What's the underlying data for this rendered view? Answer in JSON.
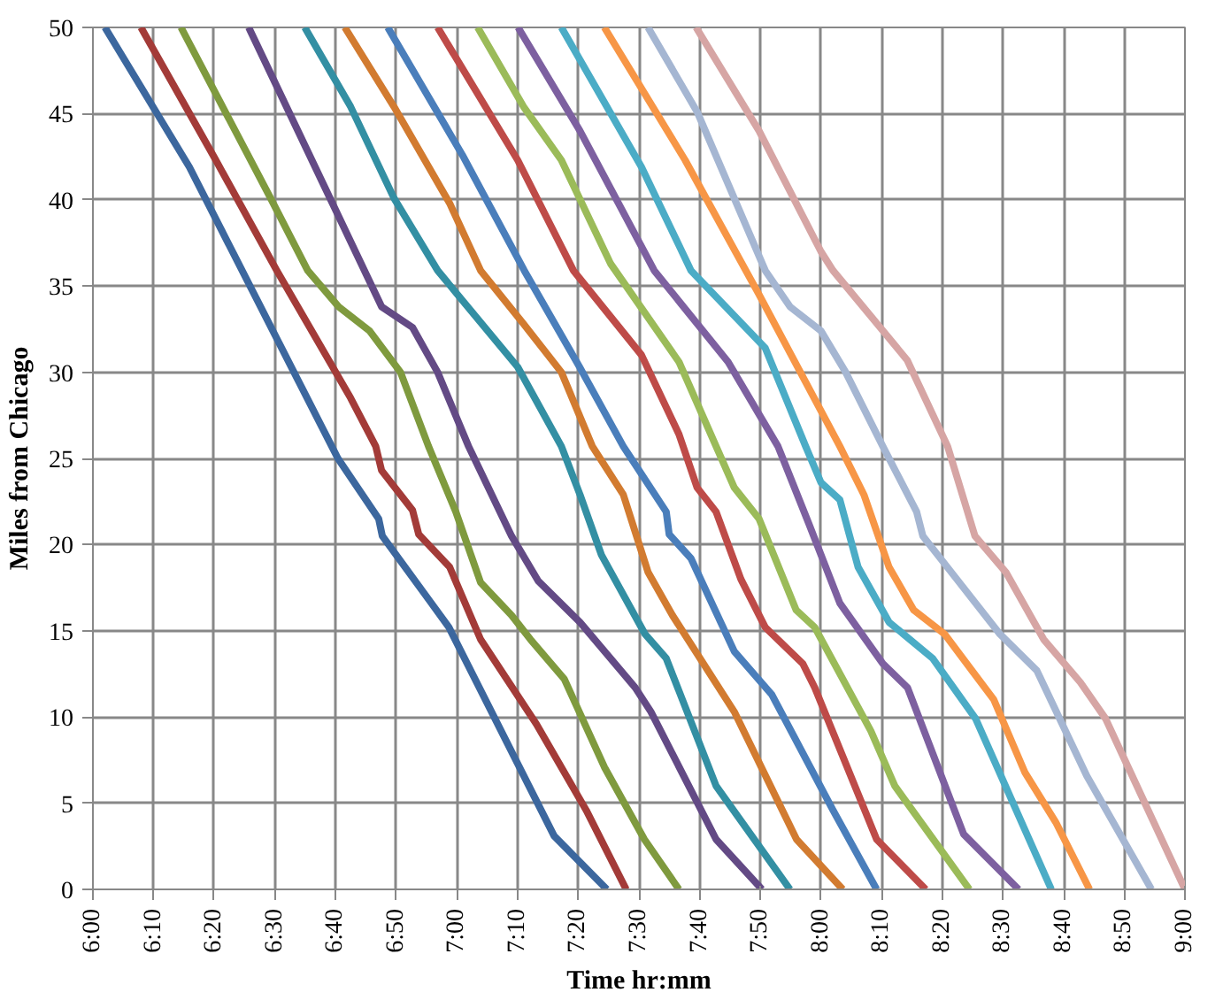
{
  "chart_data": {
    "type": "line",
    "xlabel": "Time hr:mm",
    "ylabel": "Miles from Chicago",
    "xlim": [
      6,
      9
    ],
    "ylim": [
      0,
      50
    ],
    "xticks": [
      {
        "value": 6,
        "label": "6:00"
      },
      {
        "value": 6.167,
        "label": "6:10"
      },
      {
        "value": 6.333,
        "label": "6:20"
      },
      {
        "value": 6.5,
        "label": "6:30"
      },
      {
        "value": 6.667,
        "label": "6:40"
      },
      {
        "value": 6.833,
        "label": "6:50"
      },
      {
        "value": 7,
        "label": "7:00"
      },
      {
        "value": 7.167,
        "label": "7:10"
      },
      {
        "value": 7.333,
        "label": "7:20"
      },
      {
        "value": 7.5,
        "label": "7:30"
      },
      {
        "value": 7.667,
        "label": "7:40"
      },
      {
        "value": 7.833,
        "label": "7:50"
      },
      {
        "value": 8,
        "label": "8:00"
      },
      {
        "value": 8.167,
        "label": "8:10"
      },
      {
        "value": 8.333,
        "label": "8:20"
      },
      {
        "value": 8.5,
        "label": "8:30"
      },
      {
        "value": 8.667,
        "label": "8:40"
      },
      {
        "value": 8.833,
        "label": "8:50"
      },
      {
        "value": 9,
        "label": "9:00"
      }
    ],
    "yticks": [
      0,
      5,
      10,
      15,
      20,
      25,
      30,
      35,
      40,
      45,
      50
    ],
    "grid": true,
    "marker": "none",
    "line_style": "solid",
    "series": [
      {
        "color": "#3c679e",
        "x": [
          6.033,
          6.265,
          6.673,
          6.785,
          6.795,
          6.923,
          6.978,
          7.267,
          7.412
        ],
        "values": [
          50,
          41.9,
          25,
          21.5,
          20.5,
          16.8,
          15.2,
          3.1,
          0
        ]
      },
      {
        "color": "#a33b38",
        "x": [
          6.132,
          6.335,
          6.505,
          6.708,
          6.777,
          6.793,
          6.878,
          6.895,
          6.98,
          7.065,
          7.218,
          7.355,
          7.465
        ],
        "values": [
          50,
          42.4,
          35.9,
          28.5,
          25.7,
          24.3,
          22,
          20.6,
          18.7,
          14.5,
          9.6,
          4.6,
          0
        ]
      },
      {
        "color": "#7f9a3e",
        "x": [
          6.242,
          6.488,
          6.59,
          6.675,
          6.76,
          6.845,
          6.922,
          6.997,
          7.065,
          7.15,
          7.202,
          7.295,
          7.405,
          7.515,
          7.61
        ],
        "values": [
          50,
          40.1,
          35.9,
          33.8,
          32.4,
          30,
          25.7,
          21.9,
          17.8,
          15.9,
          14.5,
          12.2,
          7.1,
          2.9,
          0
        ]
      },
      {
        "color": "#634a85",
        "x": [
          6.428,
          6.658,
          6.793,
          6.878,
          6.947,
          7.032,
          7.15,
          7.223,
          7.338,
          7.49,
          7.533,
          7.712,
          7.838
        ],
        "values": [
          50,
          39.8,
          33.8,
          32.6,
          30,
          25.7,
          20.5,
          17.9,
          15.5,
          11.7,
          10.3,
          2.9,
          0
        ]
      },
      {
        "color": "#338fa3",
        "x": [
          6.582,
          6.708,
          6.827,
          6.947,
          7.167,
          7.287,
          7.338,
          7.397,
          7.517,
          7.575,
          7.712,
          7.915
        ],
        "values": [
          50,
          45.4,
          40.1,
          35.9,
          30.3,
          25.7,
          22.9,
          19.4,
          14.8,
          13.4,
          6,
          0
        ]
      },
      {
        "color": "#d27b30",
        "x": [
          6.692,
          6.827,
          6.98,
          7.065,
          7.183,
          7.287,
          7.372,
          7.457,
          7.525,
          7.592,
          7.762,
          7.933,
          8.06
        ],
        "values": [
          50,
          45.4,
          39.8,
          35.9,
          32.8,
          30,
          25.7,
          22.9,
          18.4,
          15.9,
          10.3,
          2.9,
          0
        ]
      },
      {
        "color": "#4a7ebb",
        "x": [
          6.81,
          7.015,
          7.185,
          7.337,
          7.457,
          7.575,
          7.583,
          7.643,
          7.762,
          7.865,
          8.033,
          8.153
        ],
        "values": [
          50,
          42.6,
          35.9,
          30.3,
          25.7,
          21.9,
          20.6,
          19.2,
          13.8,
          11.3,
          4.6,
          0
        ]
      },
      {
        "color": "#be4b48",
        "x": [
          6.947,
          7.167,
          7.32,
          7.507,
          7.61,
          7.66,
          7.712,
          7.78,
          7.847,
          7.95,
          7.983,
          8.153,
          8.288
        ],
        "values": [
          50,
          42.3,
          35.9,
          31,
          26.4,
          23.3,
          21.9,
          18,
          15.2,
          13.1,
          11.7,
          2.9,
          0
        ]
      },
      {
        "color": "#9bbb59",
        "x": [
          7.057,
          7.183,
          7.287,
          7.422,
          7.61,
          7.712,
          7.762,
          7.83,
          7.932,
          7.983,
          8.137,
          8.203,
          8.408
        ],
        "values": [
          50,
          45.4,
          42.3,
          36.3,
          30.6,
          25.7,
          23.3,
          21.5,
          16.2,
          15.2,
          9.2,
          6,
          0
        ]
      },
      {
        "color": "#7d60a0",
        "x": [
          7.168,
          7.338,
          7.542,
          7.745,
          7.882,
          7.967,
          8.052,
          8.17,
          8.238,
          8.392,
          8.543
        ],
        "values": [
          50,
          44,
          35.9,
          30.6,
          25.7,
          21.2,
          16.6,
          13.1,
          11.7,
          3.2,
          0
        ]
      },
      {
        "color": "#4bacc6",
        "x": [
          7.287,
          7.507,
          7.643,
          7.847,
          7.958,
          8.0,
          8.052,
          8.102,
          8.187,
          8.307,
          8.425,
          8.633
        ],
        "values": [
          50,
          41.9,
          35.9,
          31.4,
          25.7,
          23.6,
          22.6,
          18.7,
          15.5,
          13.4,
          9.9,
          0
        ]
      },
      {
        "color": "#f79646",
        "x": [
          7.405,
          7.627,
          7.83,
          8.052,
          8.118,
          8.187,
          8.255,
          8.34,
          8.475,
          8.56,
          8.645,
          8.738
        ],
        "values": [
          50,
          42.3,
          34.5,
          25.7,
          22.9,
          18.7,
          16.2,
          14.8,
          11,
          6.8,
          3.9,
          0
        ]
      },
      {
        "color": "#a5b6d2",
        "x": [
          7.525,
          7.66,
          7.847,
          7.915,
          8.0,
          8.068,
          8.17,
          8.263,
          8.28,
          8.373,
          8.492,
          8.593,
          8.73,
          8.908
        ],
        "values": [
          50,
          45.1,
          35.9,
          33.8,
          32.4,
          30,
          25.7,
          21.9,
          20.5,
          18,
          14.8,
          12.7,
          6.6,
          0
        ]
      },
      {
        "color": "#d6a5a4",
        "x": [
          7.657,
          7.83,
          8.0,
          8.033,
          8.237,
          8.348,
          8.423,
          8.508,
          8.612,
          8.713,
          8.782,
          9.0
        ],
        "values": [
          50,
          44,
          37,
          35.9,
          30.7,
          25.7,
          20.5,
          18.4,
          14.5,
          12,
          9.9,
          0
        ]
      }
    ]
  }
}
